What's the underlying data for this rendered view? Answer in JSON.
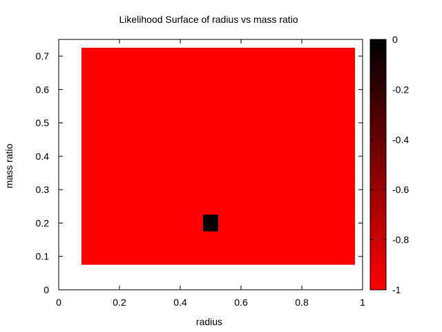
{
  "chart_data": {
    "type": "heatmap",
    "title": "Likelihood Surface of radius vs mass ratio",
    "xlabel": "radius",
    "ylabel": "mass ratio",
    "xlim": [
      0,
      1
    ],
    "ylim": [
      0,
      0.75
    ],
    "x_ticks": [
      0,
      0.2,
      0.4,
      0.6,
      0.8,
      1
    ],
    "x_tick_labels": [
      "0",
      "0.2",
      "0.4",
      "0.6",
      "0.8",
      "1"
    ],
    "y_ticks": [
      0,
      0.1,
      0.2,
      0.3,
      0.4,
      0.5,
      0.6,
      0.7
    ],
    "y_tick_labels": [
      "0",
      "0.1",
      "0.2",
      "0.3",
      "0.4",
      "0.5",
      "0.6",
      "0.7"
    ],
    "x_range": [
      0.075,
      0.975
    ],
    "y_range": [
      0.075,
      0.725
    ],
    "cell_size": [
      0.05,
      0.05
    ],
    "background_value": -1,
    "cells": [
      {
        "x": 0.5,
        "y": 0.2,
        "value": 0
      }
    ],
    "colorbar": {
      "range": [
        -1,
        0
      ],
      "ticks": [
        0,
        -0.2,
        -0.4,
        -0.6,
        -0.8,
        -1
      ],
      "tick_labels": [
        "0",
        "-0.2",
        "-0.4",
        "-0.6",
        "-0.8",
        "-1"
      ],
      "colors": {
        "max": "#000000",
        "min": "#ff0000"
      }
    },
    "grid": false,
    "legend": "colorbar-right"
  }
}
